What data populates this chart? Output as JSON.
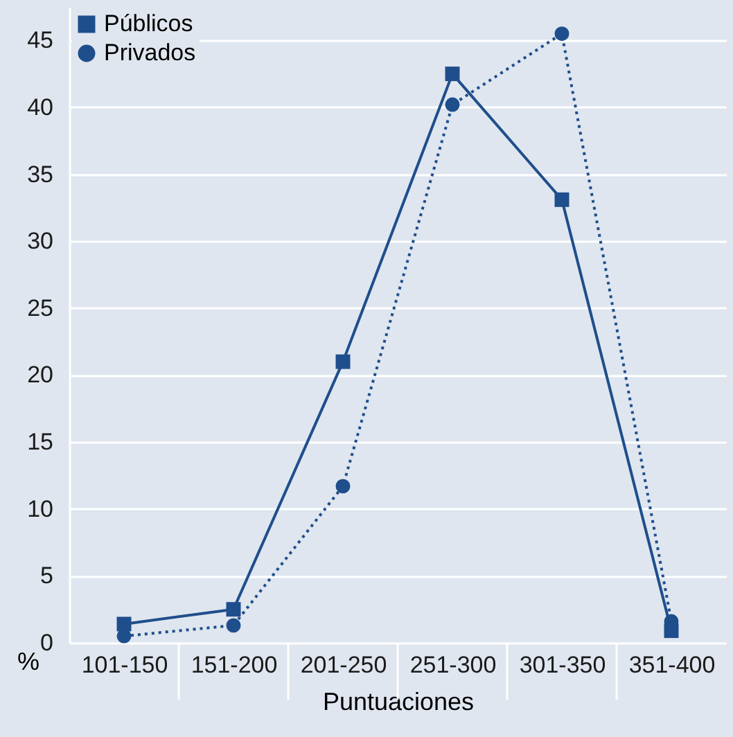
{
  "chart_data": {
    "type": "line",
    "xlabel": "Puntuaciones",
    "ylabel": "%",
    "categories": [
      "101-150",
      "151-200",
      "201-250",
      "251-300",
      "301-350",
      "351-400"
    ],
    "series": [
      {
        "name": "Públicos",
        "color": "#1f4e8c",
        "marker": "square",
        "line_style": "solid",
        "values": [
          1.4,
          2.5,
          21.0,
          42.5,
          33.1,
          0.9
        ]
      },
      {
        "name": "Privados",
        "color": "#1f4e8c",
        "marker": "circle",
        "line_style": "dotted",
        "values": [
          0.5,
          1.3,
          11.7,
          40.2,
          45.5,
          1.6
        ]
      }
    ],
    "ylim": [
      0,
      47.5
    ],
    "yticks": [
      0,
      5,
      10,
      15,
      20,
      25,
      30,
      35,
      40,
      45
    ],
    "grid": "y",
    "legend": "top left"
  }
}
